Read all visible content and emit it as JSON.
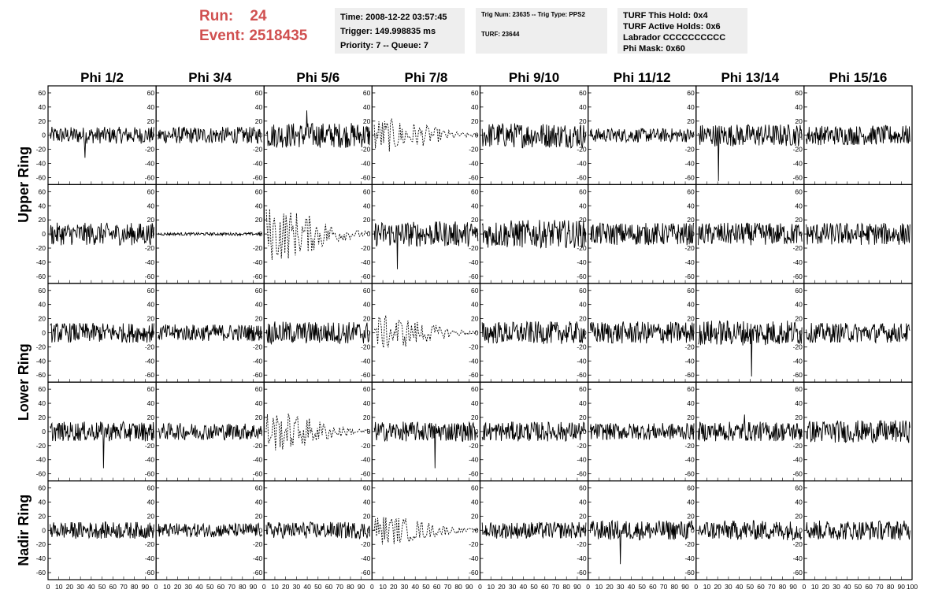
{
  "header": {
    "run_label": "Run:",
    "run_value": "24",
    "event_label": "Event:",
    "event_value": "2518435"
  },
  "info_time": {
    "time": "Time: 2008-12-22 03:57:45",
    "trigger": "Trigger: 149.998835 ms",
    "priority": "Priority: 7 -- Queue: 7"
  },
  "info_trig": {
    "trig": "Trig Num: 23635 -- Trig Type: PPS2",
    "turf": "TURF: 23644"
  },
  "info_turf": {
    "hold": "TURF This Hold: 0x4",
    "active": "TURF Active Holds: 0x6",
    "labrador": "Labrador CCCCCCCCCC",
    "phimask": "Phi Mask: 0x60"
  },
  "chart_data": {
    "type": "line",
    "columns": [
      "Phi 1/2",
      "Phi 3/4",
      "Phi 5/6",
      "Phi 7/8",
      "Phi 9/10",
      "Phi 11/12",
      "Phi 13/14",
      "Phi 15/16"
    ],
    "rows": [
      "Upper Ring",
      "Upper Ring",
      "Lower Ring",
      "Lower Ring",
      "Nadir Ring"
    ],
    "row_labels": [
      "Upper Ring",
      "Lower Ring",
      "Nadir Ring"
    ],
    "xlim": [
      0,
      100
    ],
    "ylim": [
      -70,
      70
    ],
    "y_ticks": [
      -60,
      -40,
      -20,
      0,
      20,
      40,
      60
    ],
    "x_ticks": [
      0,
      10,
      20,
      30,
      40,
      50,
      60,
      70,
      80,
      90,
      100
    ],
    "y_tick_labels": [
      "-60",
      "-40",
      "-20",
      "0",
      "20",
      "40",
      "60"
    ],
    "x_tick_labels": [
      "0",
      "10",
      "20",
      "30",
      "40",
      "50",
      "60",
      "70",
      "80",
      "90",
      "100"
    ],
    "panel_amplitude": [
      [
        12,
        12,
        18,
        14,
        18,
        10,
        16,
        14
      ],
      [
        16,
        2,
        22,
        18,
        20,
        16,
        16,
        16
      ],
      [
        14,
        12,
        16,
        14,
        16,
        16,
        18,
        14
      ],
      [
        14,
        12,
        16,
        14,
        14,
        12,
        14,
        16
      ],
      [
        12,
        10,
        12,
        12,
        12,
        14,
        14,
        14
      ]
    ],
    "dotted_panels": [
      [
        0,
        3
      ],
      [
        1,
        2
      ],
      [
        2,
        3
      ],
      [
        3,
        2
      ],
      [
        4,
        3
      ]
    ],
    "spikes": [
      {
        "row": 0,
        "col": 0,
        "index": 60,
        "value": -32
      },
      {
        "row": 0,
        "col": 2,
        "index": 70,
        "value": 35
      },
      {
        "row": 0,
        "col": 6,
        "index": 35,
        "value": -65
      },
      {
        "row": 1,
        "col": 3,
        "index": 40,
        "value": -50
      },
      {
        "row": 2,
        "col": 6,
        "index": 92,
        "value": -62
      },
      {
        "row": 3,
        "col": 0,
        "index": 92,
        "value": -52
      },
      {
        "row": 3,
        "col": 3,
        "index": 105,
        "value": -52
      },
      {
        "row": 3,
        "col": 6,
        "index": 80,
        "value": 24
      },
      {
        "row": 4,
        "col": 5,
        "index": 52,
        "value": -48
      }
    ]
  }
}
